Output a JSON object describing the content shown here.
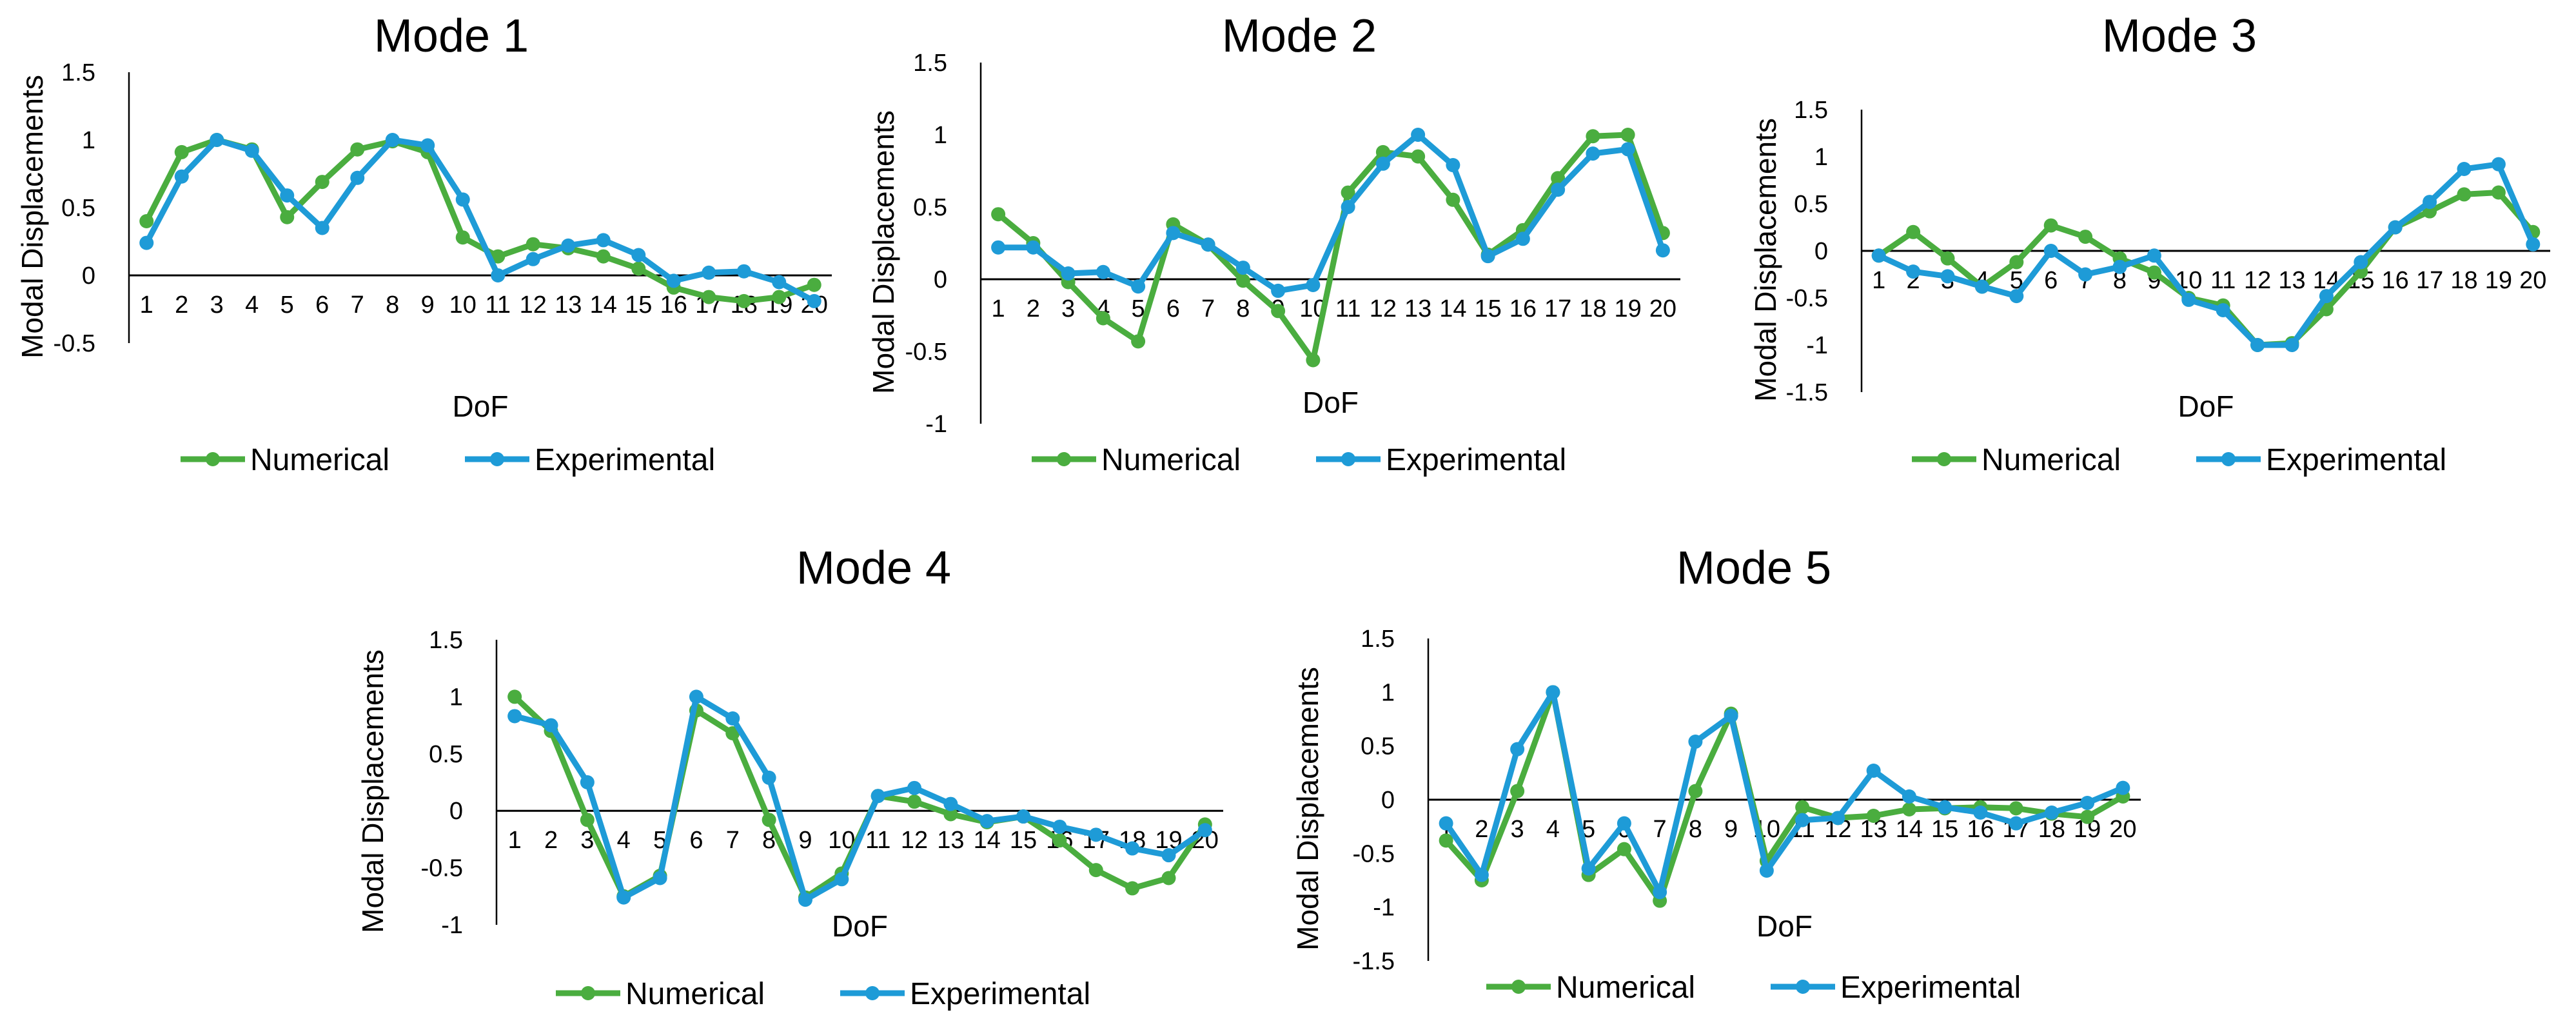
{
  "figure": {
    "series_colors": {
      "Numerical": "#4aad3f",
      "Experimental": "#1e9bd7"
    }
  },
  "chart_data": [
    {
      "type": "line",
      "title": "Mode 1",
      "xlabel": "DoF",
      "ylabel": "Modal Displacements",
      "ylim": [
        -0.5,
        1.5
      ],
      "yticks": [
        -0.5,
        0,
        0.5,
        1,
        1.5
      ],
      "ytick_labels": [
        "-0.5",
        "0",
        "0.5",
        "1",
        "1.5"
      ],
      "categories": [
        "1",
        "2",
        "3",
        "4",
        "5",
        "6",
        "7",
        "8",
        "9",
        "10",
        "11",
        "12",
        "13",
        "14",
        "15",
        "16",
        "17",
        "18",
        "19",
        "20"
      ],
      "legend": "bottom",
      "series": [
        {
          "name": "Numerical",
          "values": [
            0.4,
            0.91,
            1.0,
            0.93,
            0.43,
            0.69,
            0.93,
            0.99,
            0.91,
            0.28,
            0.14,
            0.23,
            0.2,
            0.14,
            0.05,
            -0.09,
            -0.16,
            -0.19,
            -0.16,
            -0.07
          ]
        },
        {
          "name": "Experimental",
          "values": [
            0.24,
            0.73,
            1.0,
            0.92,
            0.59,
            0.35,
            0.72,
            1.0,
            0.96,
            0.56,
            0.0,
            0.12,
            0.22,
            0.26,
            0.15,
            -0.04,
            0.02,
            0.03,
            -0.05,
            -0.19
          ]
        }
      ]
    },
    {
      "type": "line",
      "title": "Mode 2",
      "xlabel": "DoF",
      "ylabel": "Modal Displacements",
      "ylim": [
        -1,
        1.5
      ],
      "yticks": [
        -1,
        -0.5,
        0,
        0.5,
        1,
        1.5
      ],
      "ytick_labels": [
        "-1",
        "-0.5",
        "0",
        "0.5",
        "1",
        "1.5"
      ],
      "categories": [
        "1",
        "2",
        "3",
        "4",
        "5",
        "6",
        "7",
        "8",
        "9",
        "10",
        "11",
        "12",
        "13",
        "14",
        "15",
        "16",
        "17",
        "18",
        "19",
        "20"
      ],
      "legend": "bottom",
      "series": [
        {
          "name": "Numerical",
          "values": [
            0.45,
            0.25,
            -0.02,
            -0.27,
            -0.43,
            0.38,
            0.24,
            -0.01,
            -0.22,
            -0.56,
            0.6,
            0.88,
            0.85,
            0.55,
            0.17,
            0.34,
            0.7,
            0.99,
            1.0,
            0.32
          ]
        },
        {
          "name": "Experimental",
          "values": [
            0.22,
            0.22,
            0.04,
            0.05,
            -0.05,
            0.32,
            0.24,
            0.08,
            -0.08,
            -0.04,
            0.5,
            0.8,
            1.0,
            0.79,
            0.16,
            0.28,
            0.62,
            0.87,
            0.9,
            0.2
          ]
        }
      ]
    },
    {
      "type": "line",
      "title": "Mode 3",
      "xlabel": "DoF",
      "ylabel": "Modal Displacements",
      "ylim": [
        -1.5,
        1.5
      ],
      "yticks": [
        -1.5,
        -1,
        -0.5,
        0,
        0.5,
        1,
        1.5
      ],
      "ytick_labels": [
        "-1.5",
        "-1",
        "-0.5",
        "0",
        "0.5",
        "1",
        "1.5"
      ],
      "categories": [
        "1",
        "2",
        "3",
        "4",
        "5",
        "6",
        "7",
        "8",
        "9",
        "10",
        "11",
        "12",
        "13",
        "14",
        "15",
        "16",
        "17",
        "18",
        "19",
        "20"
      ],
      "legend": "bottom",
      "series": [
        {
          "name": "Numerical",
          "values": [
            -0.05,
            0.2,
            -0.08,
            -0.38,
            -0.12,
            0.27,
            0.15,
            -0.08,
            -0.23,
            -0.5,
            -0.58,
            -1.0,
            -0.98,
            -0.62,
            -0.22,
            0.25,
            0.42,
            0.6,
            0.62,
            0.2
          ]
        },
        {
          "name": "Experimental",
          "values": [
            -0.05,
            -0.22,
            -0.27,
            -0.38,
            -0.48,
            0.0,
            -0.25,
            -0.17,
            -0.05,
            -0.52,
            -0.63,
            -1.0,
            -1.0,
            -0.48,
            -0.12,
            0.25,
            0.52,
            0.87,
            0.92,
            0.07
          ]
        }
      ]
    },
    {
      "type": "line",
      "title": "Mode 4",
      "xlabel": "DoF",
      "ylabel": "Modal Displacements",
      "ylim": [
        -1,
        1.5
      ],
      "yticks": [
        -1,
        -0.5,
        0,
        0.5,
        1,
        1.5
      ],
      "ytick_labels": [
        "-1",
        "-0.5",
        "0",
        "0.5",
        "1",
        "1.5"
      ],
      "categories": [
        "1",
        "2",
        "3",
        "4",
        "5",
        "6",
        "7",
        "8",
        "9",
        "10",
        "11",
        "12",
        "13",
        "14",
        "15",
        "16",
        "17",
        "18",
        "19",
        "20"
      ],
      "legend": "bottom",
      "series": [
        {
          "name": "Numerical",
          "values": [
            1.0,
            0.7,
            -0.08,
            -0.75,
            -0.57,
            0.88,
            0.68,
            -0.08,
            -0.76,
            -0.55,
            0.13,
            0.08,
            -0.03,
            -0.1,
            -0.05,
            -0.26,
            -0.52,
            -0.68,
            -0.59,
            -0.12
          ]
        },
        {
          "name": "Experimental",
          "values": [
            0.83,
            0.75,
            0.25,
            -0.76,
            -0.59,
            1.0,
            0.81,
            0.29,
            -0.78,
            -0.6,
            0.13,
            0.2,
            0.06,
            -0.09,
            -0.05,
            -0.14,
            -0.21,
            -0.33,
            -0.39,
            -0.17
          ]
        }
      ]
    },
    {
      "type": "line",
      "title": "Mode 5",
      "xlabel": "DoF",
      "ylabel": "Modal Displacements",
      "ylim": [
        -1.5,
        1.5
      ],
      "yticks": [
        -1.5,
        -1,
        -0.5,
        0,
        0.5,
        1,
        1.5
      ],
      "ytick_labels": [
        "-1.5",
        "-1",
        "-0.5",
        "0",
        "0.5",
        "1",
        "1.5"
      ],
      "categories": [
        "1",
        "2",
        "3",
        "4",
        "5",
        "6",
        "7",
        "8",
        "9",
        "10",
        "11",
        "12",
        "13",
        "14",
        "15",
        "16",
        "17",
        "18",
        "19",
        "20"
      ],
      "legend": "bottom",
      "series": [
        {
          "name": "Numerical",
          "values": [
            -0.38,
            -0.75,
            0.08,
            1.0,
            -0.7,
            -0.46,
            -0.94,
            0.08,
            0.8,
            -0.57,
            -0.07,
            -0.17,
            -0.15,
            -0.09,
            -0.08,
            -0.07,
            -0.08,
            -0.13,
            -0.16,
            0.03
          ]
        },
        {
          "name": "Experimental",
          "values": [
            -0.22,
            -0.7,
            0.47,
            1.0,
            -0.64,
            -0.22,
            -0.86,
            0.54,
            0.78,
            -0.66,
            -0.19,
            -0.17,
            0.27,
            0.03,
            -0.07,
            -0.12,
            -0.22,
            -0.12,
            -0.03,
            0.11
          ]
        }
      ]
    }
  ]
}
